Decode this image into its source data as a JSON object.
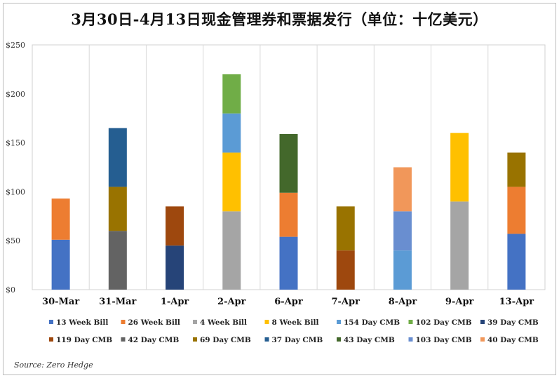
{
  "chart_data": {
    "type": "bar",
    "stacked": true,
    "title": "3月30日-4月13日现金管理券和票据发行（单位：十亿美元）",
    "source": "Source: Zero Hedge",
    "ylim": [
      0,
      250
    ],
    "yticks": [
      0,
      50,
      100,
      150,
      200,
      250
    ],
    "ytick_labels": [
      "$0",
      "$50",
      "$100",
      "$150",
      "$200",
      "$250"
    ],
    "grid": "vertical",
    "legend_position": "bottom",
    "categories": [
      "30-Mar",
      "31-Mar",
      "1-Apr",
      "2-Apr",
      "6-Apr",
      "7-Apr",
      "8-Apr",
      "9-Apr",
      "13-Apr"
    ],
    "series": [
      {
        "name": "13 Week Bill",
        "color": "#4472C4",
        "values": [
          51,
          0,
          0,
          0,
          54,
          0,
          0,
          0,
          57
        ]
      },
      {
        "name": "26 Week Bill",
        "color": "#ED7D31",
        "values": [
          42,
          0,
          0,
          0,
          45,
          0,
          0,
          0,
          48
        ]
      },
      {
        "name": "4 Week Bill",
        "color": "#A5A5A5",
        "values": [
          0,
          0,
          0,
          80,
          0,
          0,
          0,
          90,
          0
        ]
      },
      {
        "name": "8 Week Bill",
        "color": "#FFC000",
        "values": [
          0,
          0,
          0,
          60,
          0,
          0,
          0,
          70,
          0
        ]
      },
      {
        "name": "154 Day CMB",
        "color": "#5B9BD5",
        "values": [
          0,
          0,
          0,
          40,
          0,
          0,
          40,
          0,
          0
        ]
      },
      {
        "name": "102 Day CMB",
        "color": "#70AD47",
        "values": [
          0,
          0,
          0,
          40,
          0,
          0,
          0,
          0,
          0
        ]
      },
      {
        "name": "39 Day CMB",
        "color": "#264478",
        "values": [
          0,
          0,
          45,
          0,
          0,
          0,
          0,
          0,
          0
        ]
      },
      {
        "name": "119 Day CMB",
        "color": "#9E480E",
        "values": [
          0,
          0,
          40,
          0,
          0,
          40,
          0,
          0,
          0
        ]
      },
      {
        "name": "42 Day CMB",
        "color": "#636363",
        "values": [
          0,
          60,
          0,
          0,
          0,
          0,
          0,
          0,
          0
        ]
      },
      {
        "name": "69 Day CMB",
        "color": "#997300",
        "values": [
          0,
          45,
          0,
          0,
          0,
          45,
          0,
          0,
          35
        ]
      },
      {
        "name": "37 Day CMB",
        "color": "#255E91",
        "values": [
          0,
          60,
          0,
          0,
          0,
          0,
          0,
          0,
          0
        ]
      },
      {
        "name": "43 Day CMB",
        "color": "#43682B",
        "values": [
          0,
          0,
          0,
          0,
          60,
          0,
          0,
          0,
          0
        ]
      },
      {
        "name": "103 Day CMB",
        "color": "#698ED0",
        "values": [
          0,
          0,
          0,
          0,
          0,
          0,
          40,
          0,
          0
        ]
      },
      {
        "name": "40 Day CMB",
        "color": "#F1975A",
        "values": [
          0,
          0,
          0,
          0,
          0,
          0,
          45,
          0,
          0
        ]
      }
    ]
  }
}
